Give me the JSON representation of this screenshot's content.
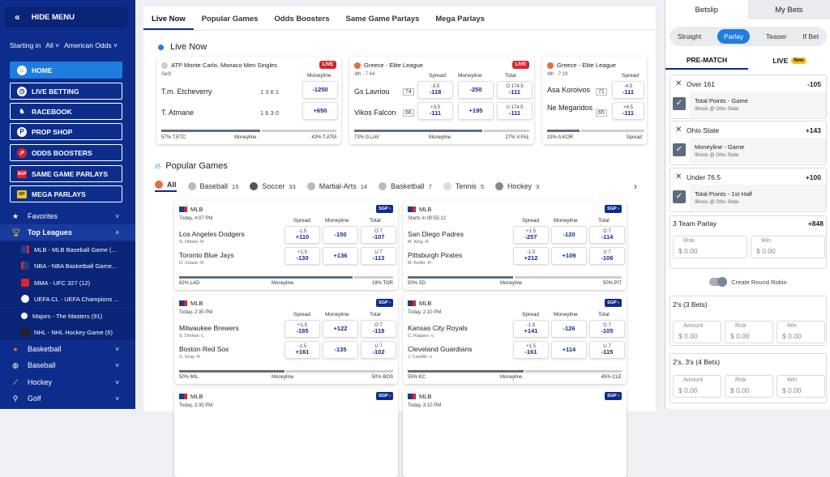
{
  "sidebar": {
    "hide_menu": "HIDE MENU",
    "starting_in_label": "Starting in",
    "starting_in_value": "All",
    "odds_format": "American Odds",
    "nav": [
      {
        "label": "HOME",
        "icon": "home-icon",
        "active": true
      },
      {
        "label": "LIVE BETTING",
        "icon": "clock-icon"
      },
      {
        "label": "RACEBOOK",
        "icon": "horse-icon"
      },
      {
        "label": "PROP SHOP",
        "icon": "prop-shop-icon"
      },
      {
        "label": "ODDS BOOSTERS",
        "icon": "rocket-icon"
      },
      {
        "label": "SAME GAME PARLAYS",
        "icon": "sgp-icon"
      },
      {
        "label": "MEGA PARLAYS",
        "icon": "mega-icon"
      }
    ],
    "favorites": "Favorites",
    "top_leagues": "Top Leagues",
    "leagues": [
      "MLB - MLB Baseball Game (...",
      "NBA - NBA Basketball Game...",
      "MMA - UFC 327 (12)",
      "UEFA CL - UEFA Champions ...",
      "Majors - The Masters (91)",
      "NHL - NHL Hockey Game (6)"
    ],
    "sports": [
      "Basketball",
      "Baseball",
      "Hockey",
      "Golf"
    ]
  },
  "tabs": [
    "Live Now",
    "Popular Games",
    "Odds Boosters",
    "Same Game Parlays",
    "Mega Parlays"
  ],
  "live_now_title": "Live Now",
  "live_cards": [
    {
      "league": "ATP Monte Carlo, Monaco Men Singles",
      "sub": "Set3",
      "badge": "LIVE",
      "col1": "Moneyline",
      "teams": [
        "T.m. Etcheverry",
        "T. Atmane"
      ],
      "scores": [
        "1  3 6 1",
        "1  6 3 0"
      ],
      "odds": [
        [
          "",
          "-1250"
        ],
        [
          "",
          "+650"
        ]
      ],
      "footer_left": "57% T.ETC",
      "footer_mid": "Moneyline",
      "footer_right": "43% T.ATM"
    },
    {
      "league": "Greece - Elite League",
      "sub": "4th · 7:44",
      "badge": "LIVE",
      "cols": [
        "Spread",
        "Moneyline",
        "Total"
      ],
      "teams": [
        "Gs Lavriou",
        "Vikos Falcon"
      ],
      "scores": [
        "74",
        "66"
      ],
      "spread": [
        [
          "-3.5",
          "-118"
        ],
        [
          "+3.5",
          "-111"
        ]
      ],
      "ml": [
        "-250",
        "+195"
      ],
      "total": [
        [
          "O 174.5",
          "-111"
        ],
        [
          "U 174.5",
          "-111"
        ]
      ],
      "footer_left": "73% G.LAV",
      "footer_mid": "Moneyline",
      "footer_right": "27% V.FAL"
    },
    {
      "league": "Greece - Elite League",
      "sub": "4th · 7:19",
      "cols": [
        "Spread"
      ],
      "teams": [
        "Asa Koroivos",
        "Ne Megaridos"
      ],
      "scores": [
        "71",
        "65"
      ],
      "spread": [
        [
          "-4.5",
          "-111"
        ],
        [
          "+4.5",
          "-111"
        ]
      ],
      "footer_left": "33% A.KOR",
      "footer_mid": "Spread"
    }
  ],
  "popular_title": "Popular Games",
  "sport_tabs": [
    {
      "label": "All",
      "count": ""
    },
    {
      "label": "Baseball",
      "count": "15"
    },
    {
      "label": "Soccer",
      "count": "33"
    },
    {
      "label": "Martial-Arts",
      "count": "14"
    },
    {
      "label": "Basketball",
      "count": "7"
    },
    {
      "label": "Tennis",
      "count": "5"
    },
    {
      "label": "Hockey",
      "count": "3"
    }
  ],
  "games": [
    {
      "league": "MLB",
      "time": "Today, 4:07 PM",
      "t1": "Los Angeles Dodgers",
      "p1": "S. Ohtani -R",
      "t2": "Toronto Blue Jays",
      "p2": "D. Cease -R",
      "s1": [
        "-1.5",
        "+110"
      ],
      "s2": [
        "+1.5",
        "-130"
      ],
      "m1": "-150",
      "m2": "+136",
      "o1": [
        "O 7",
        "-107"
      ],
      "o2": [
        "U 7",
        "-113"
      ],
      "fl": "82% LAD",
      "fr": "18% TOR"
    },
    {
      "league": "MLB",
      "time": "Starts in 00:55:12",
      "t1": "San Diego Padres",
      "p1": "M. King -R",
      "t2": "Pittsburgh Pirates",
      "p2": "M. Keller -R",
      "s1": [
        "+1.5",
        "-257"
      ],
      "s2": [
        "-1.5",
        "+212"
      ],
      "m1": "-120",
      "m2": "+109",
      "o1": [
        "O 7",
        "-114"
      ],
      "o2": [
        "U 7",
        "-106"
      ],
      "fl": "50% SD",
      "fr": "50% PIT"
    },
    {
      "league": "MLB",
      "time": "Today, 2:35 PM",
      "t1": "Milwaukee Brewers",
      "p1": "S. Drohan -L",
      "t2": "Boston Red Sox",
      "p2": "S. Gray -R",
      "s1": [
        "+1.5",
        "-185"
      ],
      "s2": [
        "-1.5",
        "+161"
      ],
      "m1": "+122",
      "m2": "-135",
      "o1": [
        "O 7",
        "-118"
      ],
      "o2": [
        "U 7",
        "-102"
      ],
      "fl": "50% MIL",
      "fr": "50% BOS"
    },
    {
      "league": "MLB",
      "time": "Today, 2:10 PM",
      "t1": "Kansas City Royals",
      "p1": "C. Ragans -L",
      "t2": "Cleveland Guardians",
      "p2": "J. Cantillo -L",
      "s1": [
        "-1.5",
        "+141"
      ],
      "s2": [
        "+1.5",
        "-161"
      ],
      "m1": "-126",
      "m2": "+114",
      "o1": [
        "O 7",
        "-105"
      ],
      "o2": [
        "U 7",
        "-115"
      ],
      "fl": "55% KC",
      "fr": "45% CLE"
    },
    {
      "league": "MLB",
      "time": "Today, 3:35 PM"
    },
    {
      "league": "MLB",
      "time": "Today, 3:10 PM"
    }
  ],
  "col_labels": {
    "spread": "Spread",
    "moneyline": "Moneyline",
    "total": "Total",
    "sgp": "SGP"
  },
  "betslip": {
    "tab1": "Betslip",
    "tab2": "My Bets",
    "types": [
      "Straight",
      "Parlay",
      "Teaser",
      "If Bet"
    ],
    "pre": "PRE-MATCH",
    "live": "LIVE",
    "new": "New",
    "bets": [
      {
        "name": "Over 161",
        "odds": "-105",
        "market": "Total Points - Game",
        "game": "Illinois @ Ohio State"
      },
      {
        "name": "Ohio State",
        "odds": "+143",
        "market": "Moneyline - Game",
        "game": "Illinois @ Ohio State"
      },
      {
        "name": "Under 76.5",
        "odds": "+100",
        "market": "Total Points - 1st Half",
        "game": "Illinois @ Ohio State"
      }
    ],
    "parlay_label": "3 Team Parlay",
    "parlay_odds": "+848",
    "risk": "Risk",
    "win": "Win",
    "amount": "Amount",
    "zero": "$ 0.00",
    "round_robin": "Create Round Robin",
    "rr1": "2's (3 Bets)",
    "rr2": "2's, 3's (4 Bets)"
  }
}
